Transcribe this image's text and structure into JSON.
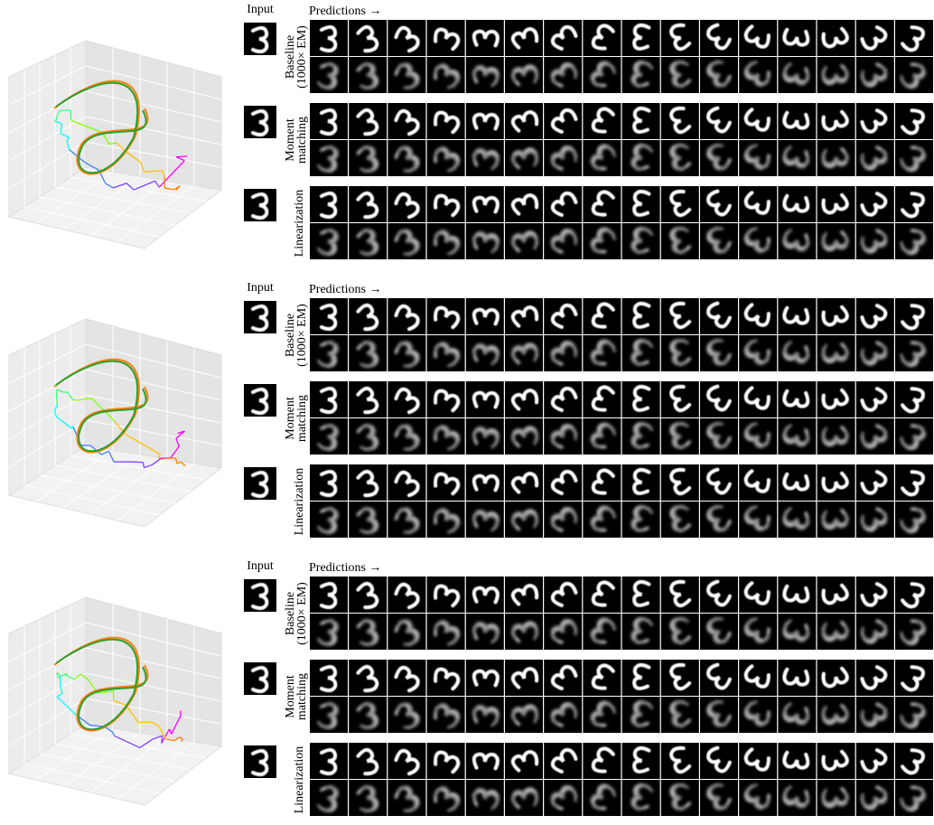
{
  "panels": [
    {
      "input_label": "Input",
      "predictions_label": "Predictions →",
      "rows": [
        {
          "label": [
            "Baseline",
            "(1000× EM)"
          ]
        },
        {
          "label": [
            "Moment",
            "matching"
          ]
        },
        {
          "label": [
            "Linearization"
          ]
        }
      ]
    },
    {
      "input_label": "Input",
      "predictions_label": "Predictions →",
      "rows": [
        {
          "label": [
            "Baseline",
            "(1000× EM)"
          ]
        },
        {
          "label": [
            "Moment",
            "matching"
          ]
        },
        {
          "label": [
            "Linearization"
          ]
        }
      ]
    },
    {
      "input_label": "Input",
      "predictions_label": "Predictions →",
      "rows": [
        {
          "label": [
            "Baseline",
            "(1000× EM)"
          ]
        },
        {
          "label": [
            "Moment",
            "matching"
          ]
        },
        {
          "label": [
            "Linearization"
          ]
        }
      ]
    }
  ]
}
